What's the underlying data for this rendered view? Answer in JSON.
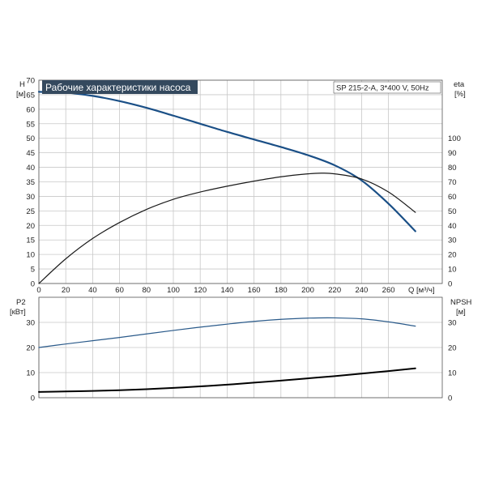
{
  "header": {
    "title": "Рабочие характеристики насоса",
    "model": "SP 215-2-A, 3*400 V, 50Hz"
  },
  "colors": {
    "title_bg": "#34495e",
    "h_curve": "#1a4f86",
    "eta_curve": "#1a1a1a",
    "p2_curve": "#2a5a8a",
    "npsh_curve": "#000000",
    "grid": "#c8c8c8"
  },
  "chart_data": [
    {
      "type": "line",
      "name": "top-panel",
      "xlabel": "Q [м³/ч]",
      "xlim": [
        0,
        300
      ],
      "x_ticks": [
        0,
        20,
        40,
        60,
        80,
        100,
        120,
        140,
        160,
        180,
        200,
        220,
        240,
        260
      ],
      "y_left": {
        "label_line1": "H",
        "label_line2": "[м]",
        "lim": [
          0,
          70
        ],
        "ticks": [
          0,
          5,
          10,
          15,
          20,
          25,
          30,
          35,
          40,
          45,
          50,
          55,
          60,
          65,
          70
        ]
      },
      "y_right": {
        "label_line1": "eta",
        "label_line2": "[%]",
        "lim": [
          0,
          140
        ],
        "ticks": [
          0,
          10,
          20,
          30,
          40,
          50,
          60,
          70,
          80,
          90,
          100
        ]
      },
      "series": [
        {
          "key": "H",
          "axis": "left",
          "x": [
            0,
            20,
            40,
            60,
            80,
            100,
            120,
            140,
            160,
            180,
            200,
            220,
            240,
            260,
            280
          ],
          "y": [
            66,
            65.7,
            64.6,
            62.8,
            60.5,
            57.8,
            55,
            52.2,
            49.6,
            47,
            44.2,
            40.7,
            35.5,
            27.5,
            18
          ]
        },
        {
          "key": "eta",
          "axis": "right",
          "x": [
            0,
            20,
            40,
            60,
            80,
            100,
            120,
            140,
            160,
            180,
            200,
            210,
            220,
            240,
            260,
            280
          ],
          "y": [
            0,
            17,
            31,
            42,
            51,
            58,
            63,
            67,
            70.5,
            73.5,
            75.5,
            76,
            75.5,
            72,
            63,
            49
          ]
        }
      ]
    },
    {
      "type": "line",
      "name": "bottom-panel",
      "xlim": [
        0,
        300
      ],
      "x_ticks": [
        0,
        20,
        40,
        60,
        80,
        100,
        120,
        140,
        160,
        180,
        200,
        220,
        240,
        260
      ],
      "y_left": {
        "label_line1": "P2",
        "label_line2": "[кВт]",
        "lim": [
          0,
          40
        ],
        "ticks": [
          0,
          10,
          20,
          30
        ]
      },
      "y_right": {
        "label_line1": "NPSH",
        "label_line2": "[м]",
        "lim": [
          0,
          40
        ],
        "ticks": [
          0,
          10,
          20,
          30
        ]
      },
      "series": [
        {
          "key": "P2",
          "axis": "left",
          "x": [
            0,
            20,
            40,
            60,
            80,
            100,
            120,
            140,
            160,
            180,
            200,
            220,
            240,
            260,
            280
          ],
          "y": [
            20,
            21.4,
            22.7,
            24,
            25.4,
            26.8,
            28.1,
            29.3,
            30.4,
            31.2,
            31.7,
            31.8,
            31.4,
            30.2,
            28.5
          ]
        },
        {
          "key": "NPSH",
          "axis": "right",
          "x": [
            0,
            20,
            40,
            60,
            80,
            100,
            120,
            140,
            160,
            180,
            200,
            220,
            240,
            260,
            280
          ],
          "y": [
            2.3,
            2.5,
            2.7,
            3.0,
            3.4,
            3.9,
            4.5,
            5.2,
            6.0,
            6.8,
            7.7,
            8.6,
            9.6,
            10.6,
            11.7
          ]
        }
      ]
    }
  ]
}
